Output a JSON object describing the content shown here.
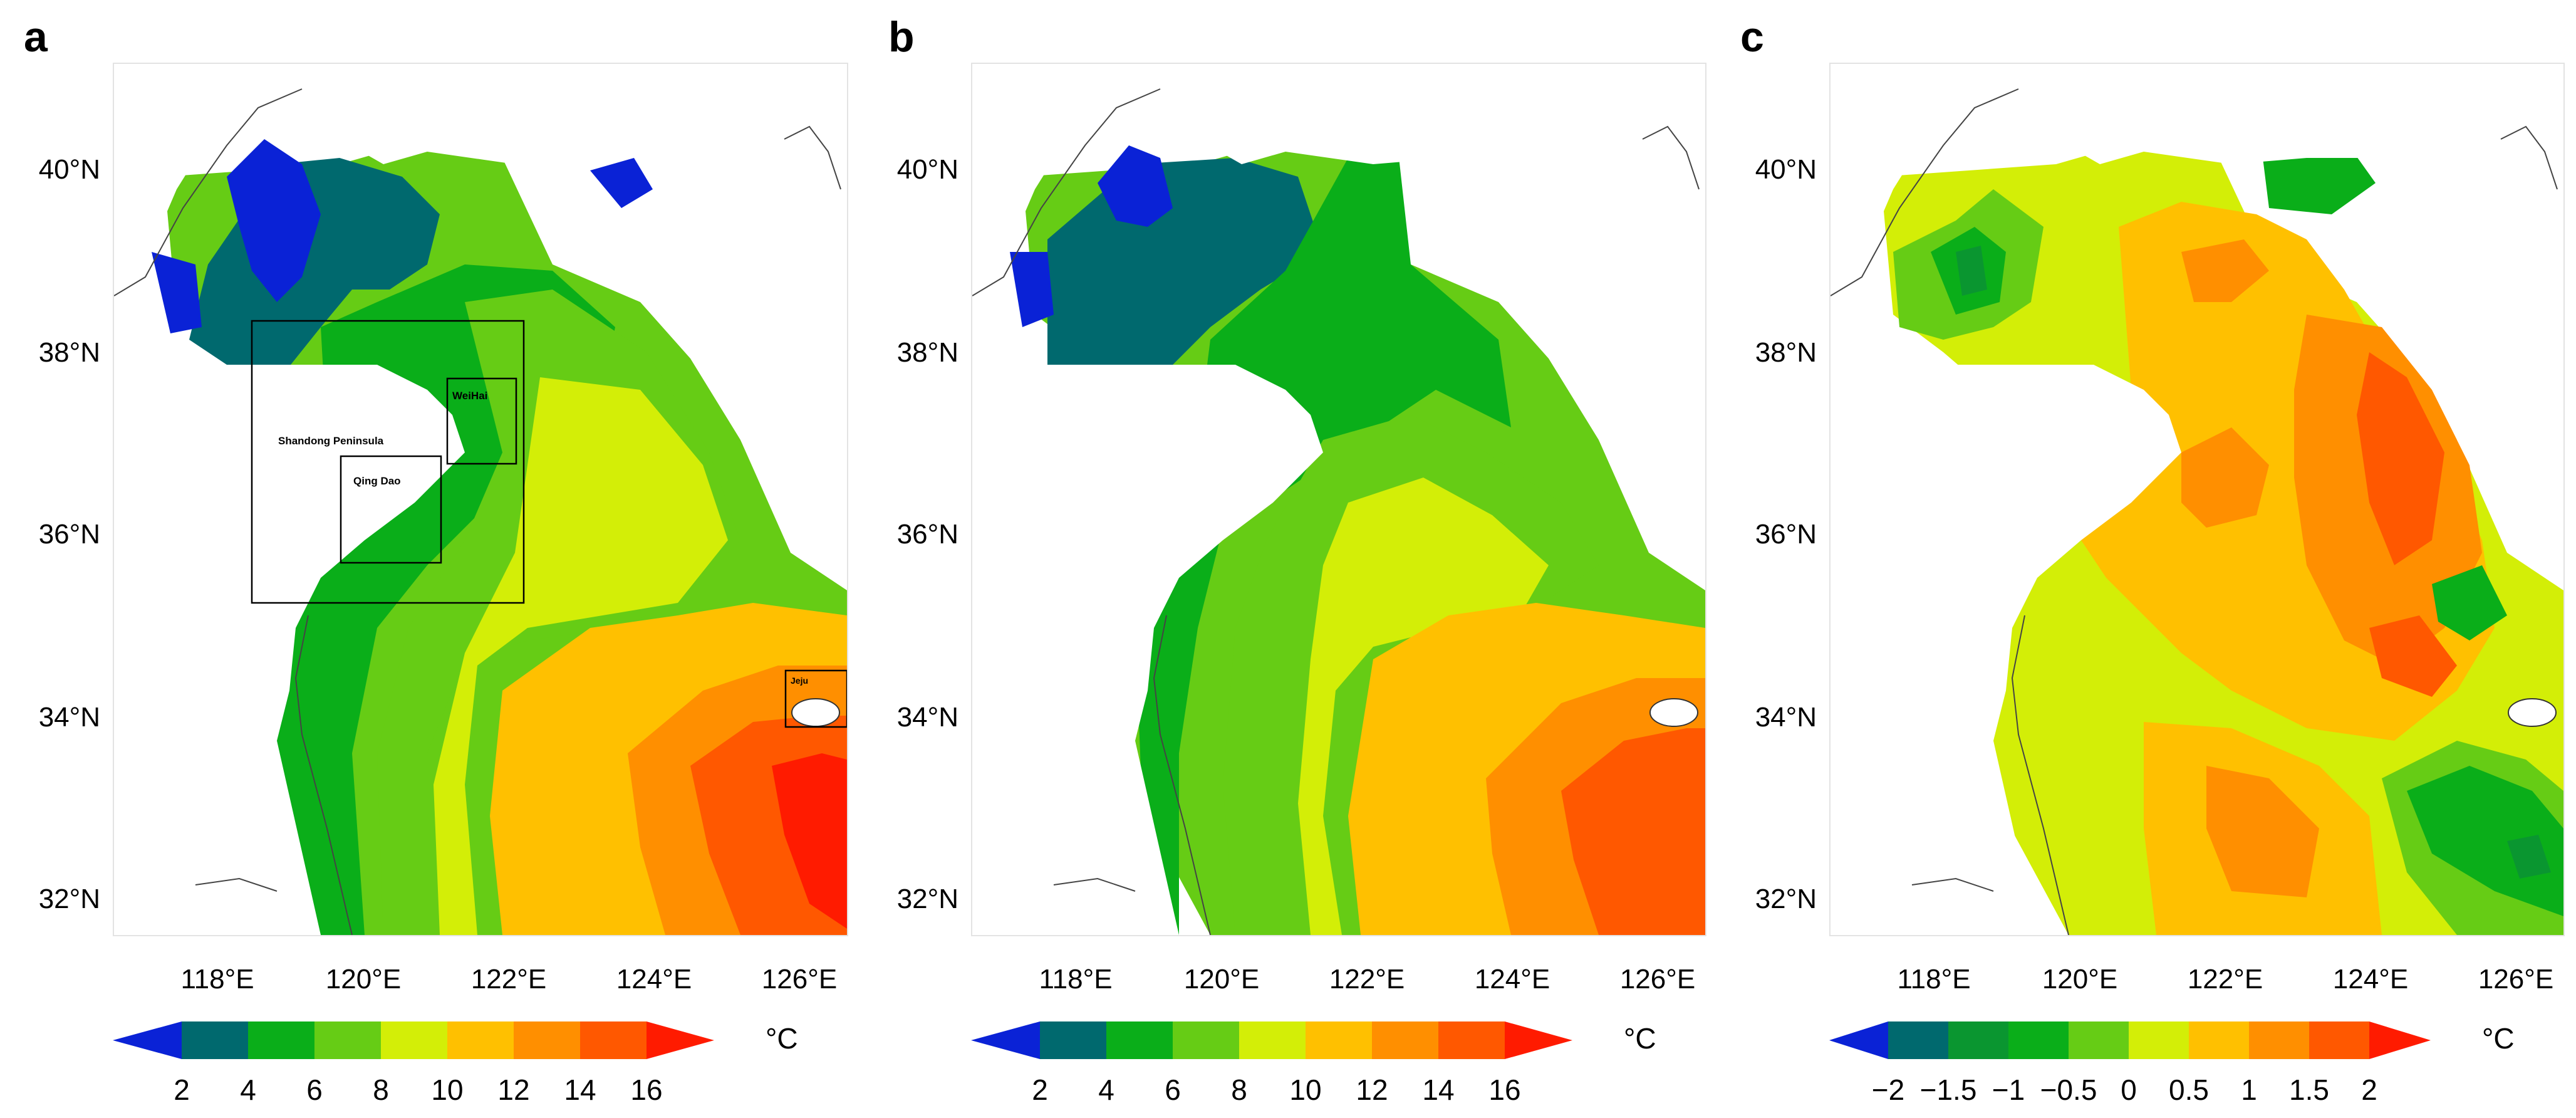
{
  "panels": [
    {
      "letter": "a",
      "lat_labels": [
        "40°N",
        "38°N",
        "36°N",
        "34°N",
        "32°N"
      ],
      "lon_labels": [
        "118°E",
        "120°E",
        "122°E",
        "124°E",
        "126°E"
      ],
      "colorbar_ticks": [
        "2",
        "4",
        "6",
        "8",
        "10",
        "12",
        "14",
        "16"
      ],
      "unit": "°C",
      "annotations": [
        "Shandong Peninsula",
        "WeiHai",
        "Qing Dao",
        "Jeju"
      ]
    },
    {
      "letter": "b",
      "lat_labels": [
        "40°N",
        "38°N",
        "36°N",
        "34°N",
        "32°N"
      ],
      "lon_labels": [
        "118°E",
        "120°E",
        "122°E",
        "124°E",
        "126°E"
      ],
      "colorbar_ticks": [
        "2",
        "4",
        "6",
        "8",
        "10",
        "12",
        "14",
        "16"
      ],
      "unit": "°C"
    },
    {
      "letter": "c",
      "lat_labels": [
        "40°N",
        "38°N",
        "36°N",
        "34°N",
        "32°N"
      ],
      "lon_labels": [
        "118°E",
        "120°E",
        "122°E",
        "124°E",
        "126°E"
      ],
      "colorbar_ticks": [
        "−2",
        "−1.5",
        "−1",
        "−0.5",
        "0",
        "0.5",
        "1",
        "1.5",
        "2"
      ],
      "unit": "°C"
    }
  ],
  "colors": {
    "temp_scale": [
      "#0a22d6",
      "#00696e",
      "#0aae19",
      "#66cc15",
      "#d3ee07",
      "#ffc000",
      "#ff8f00",
      "#ff5800",
      "#ff1b00"
    ],
    "diff_scale": [
      "#0a22d6",
      "#00696e",
      "#0a9630",
      "#0aae19",
      "#66cc15",
      "#d3ee07",
      "#ffc000",
      "#ff8f00",
      "#ff5800",
      "#ff1b00"
    ]
  }
}
